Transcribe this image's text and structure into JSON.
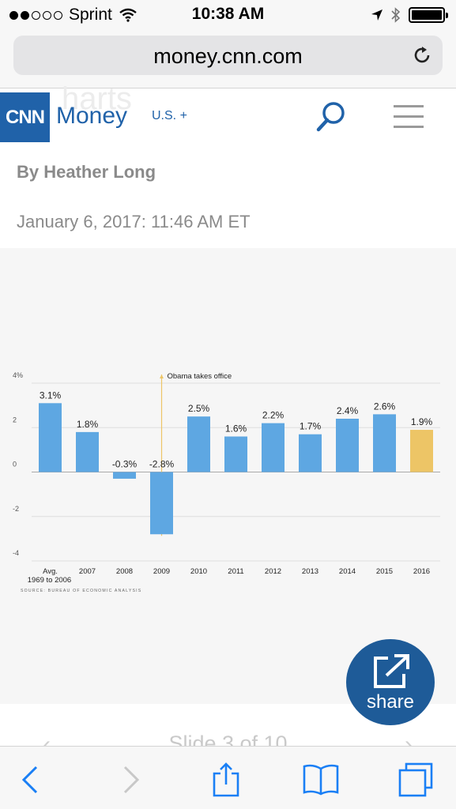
{
  "status_bar": {
    "carrier": "Sprint",
    "time": "10:38 AM",
    "signal_icon": "signal-dots-icon",
    "wifi_icon": "wifi-icon",
    "location_icon": "location-arrow-icon",
    "bluetooth_icon": "bluetooth-icon",
    "battery_icon": "battery-icon"
  },
  "browser": {
    "url": "money.cnn.com",
    "reload_icon": "reload-icon"
  },
  "site_header": {
    "logo": "CNN",
    "brand": "Money",
    "region": "U.S. +",
    "ghost_text": "harts",
    "search_icon": "search-icon",
    "menu_icon": "hamburger-menu-icon"
  },
  "article": {
    "byline": "By Heather Long",
    "dateline": "January 6, 2017: 11:46 AM ET"
  },
  "chart_data": {
    "type": "bar",
    "categories": [
      "Avg.\n1969 to 2006",
      "2007",
      "2008",
      "2009",
      "2010",
      "2011",
      "2012",
      "2013",
      "2014",
      "2015",
      "2016"
    ],
    "category_lines": [
      [
        "Avg.",
        "1969 to 2006"
      ],
      [
        "2007"
      ],
      [
        "2008"
      ],
      [
        "2009"
      ],
      [
        "2010"
      ],
      [
        "2011"
      ],
      [
        "2012"
      ],
      [
        "2013"
      ],
      [
        "2014"
      ],
      [
        "2015"
      ],
      [
        "2016"
      ]
    ],
    "values": [
      3.1,
      1.8,
      -0.3,
      -2.8,
      2.5,
      1.6,
      2.2,
      1.7,
      2.4,
      2.6,
      1.9
    ],
    "value_labels": [
      "3.1%",
      "1.8%",
      "-0.3%",
      "-2.8%",
      "2.5%",
      "1.6%",
      "2.2%",
      "1.7%",
      "2.4%",
      "2.6%",
      "1.9%"
    ],
    "highlight_index": 10,
    "colors": {
      "bar": "#5ea7e2",
      "highlight": "#edc566",
      "annotation_line": "#edc566",
      "grid": "#dddddd",
      "zero": "#aaaaaa"
    },
    "y_ticks": [
      4,
      2,
      0,
      -2,
      -4
    ],
    "y_tick_labels": [
      "4%",
      "2",
      "0",
      "-2",
      "-4"
    ],
    "ylim": [
      -4,
      4
    ],
    "grid": true,
    "annotation": {
      "text": "Obama takes office",
      "category": "2009"
    },
    "source": "SOURCE: BUREAU OF ECONOMIC ANALYSIS"
  },
  "share": {
    "label": "share",
    "icon": "share-external-icon"
  },
  "slide": {
    "text": "Slide 3 of 10",
    "prev_icon": "chevron-left-icon",
    "next_icon": "chevron-right-icon"
  },
  "toolbar": {
    "back_icon": "back-chevron-icon",
    "forward_icon": "forward-chevron-icon",
    "share_icon": "share-box-icon",
    "bookmarks_icon": "open-book-icon",
    "tabs_icon": "tabs-icon"
  }
}
